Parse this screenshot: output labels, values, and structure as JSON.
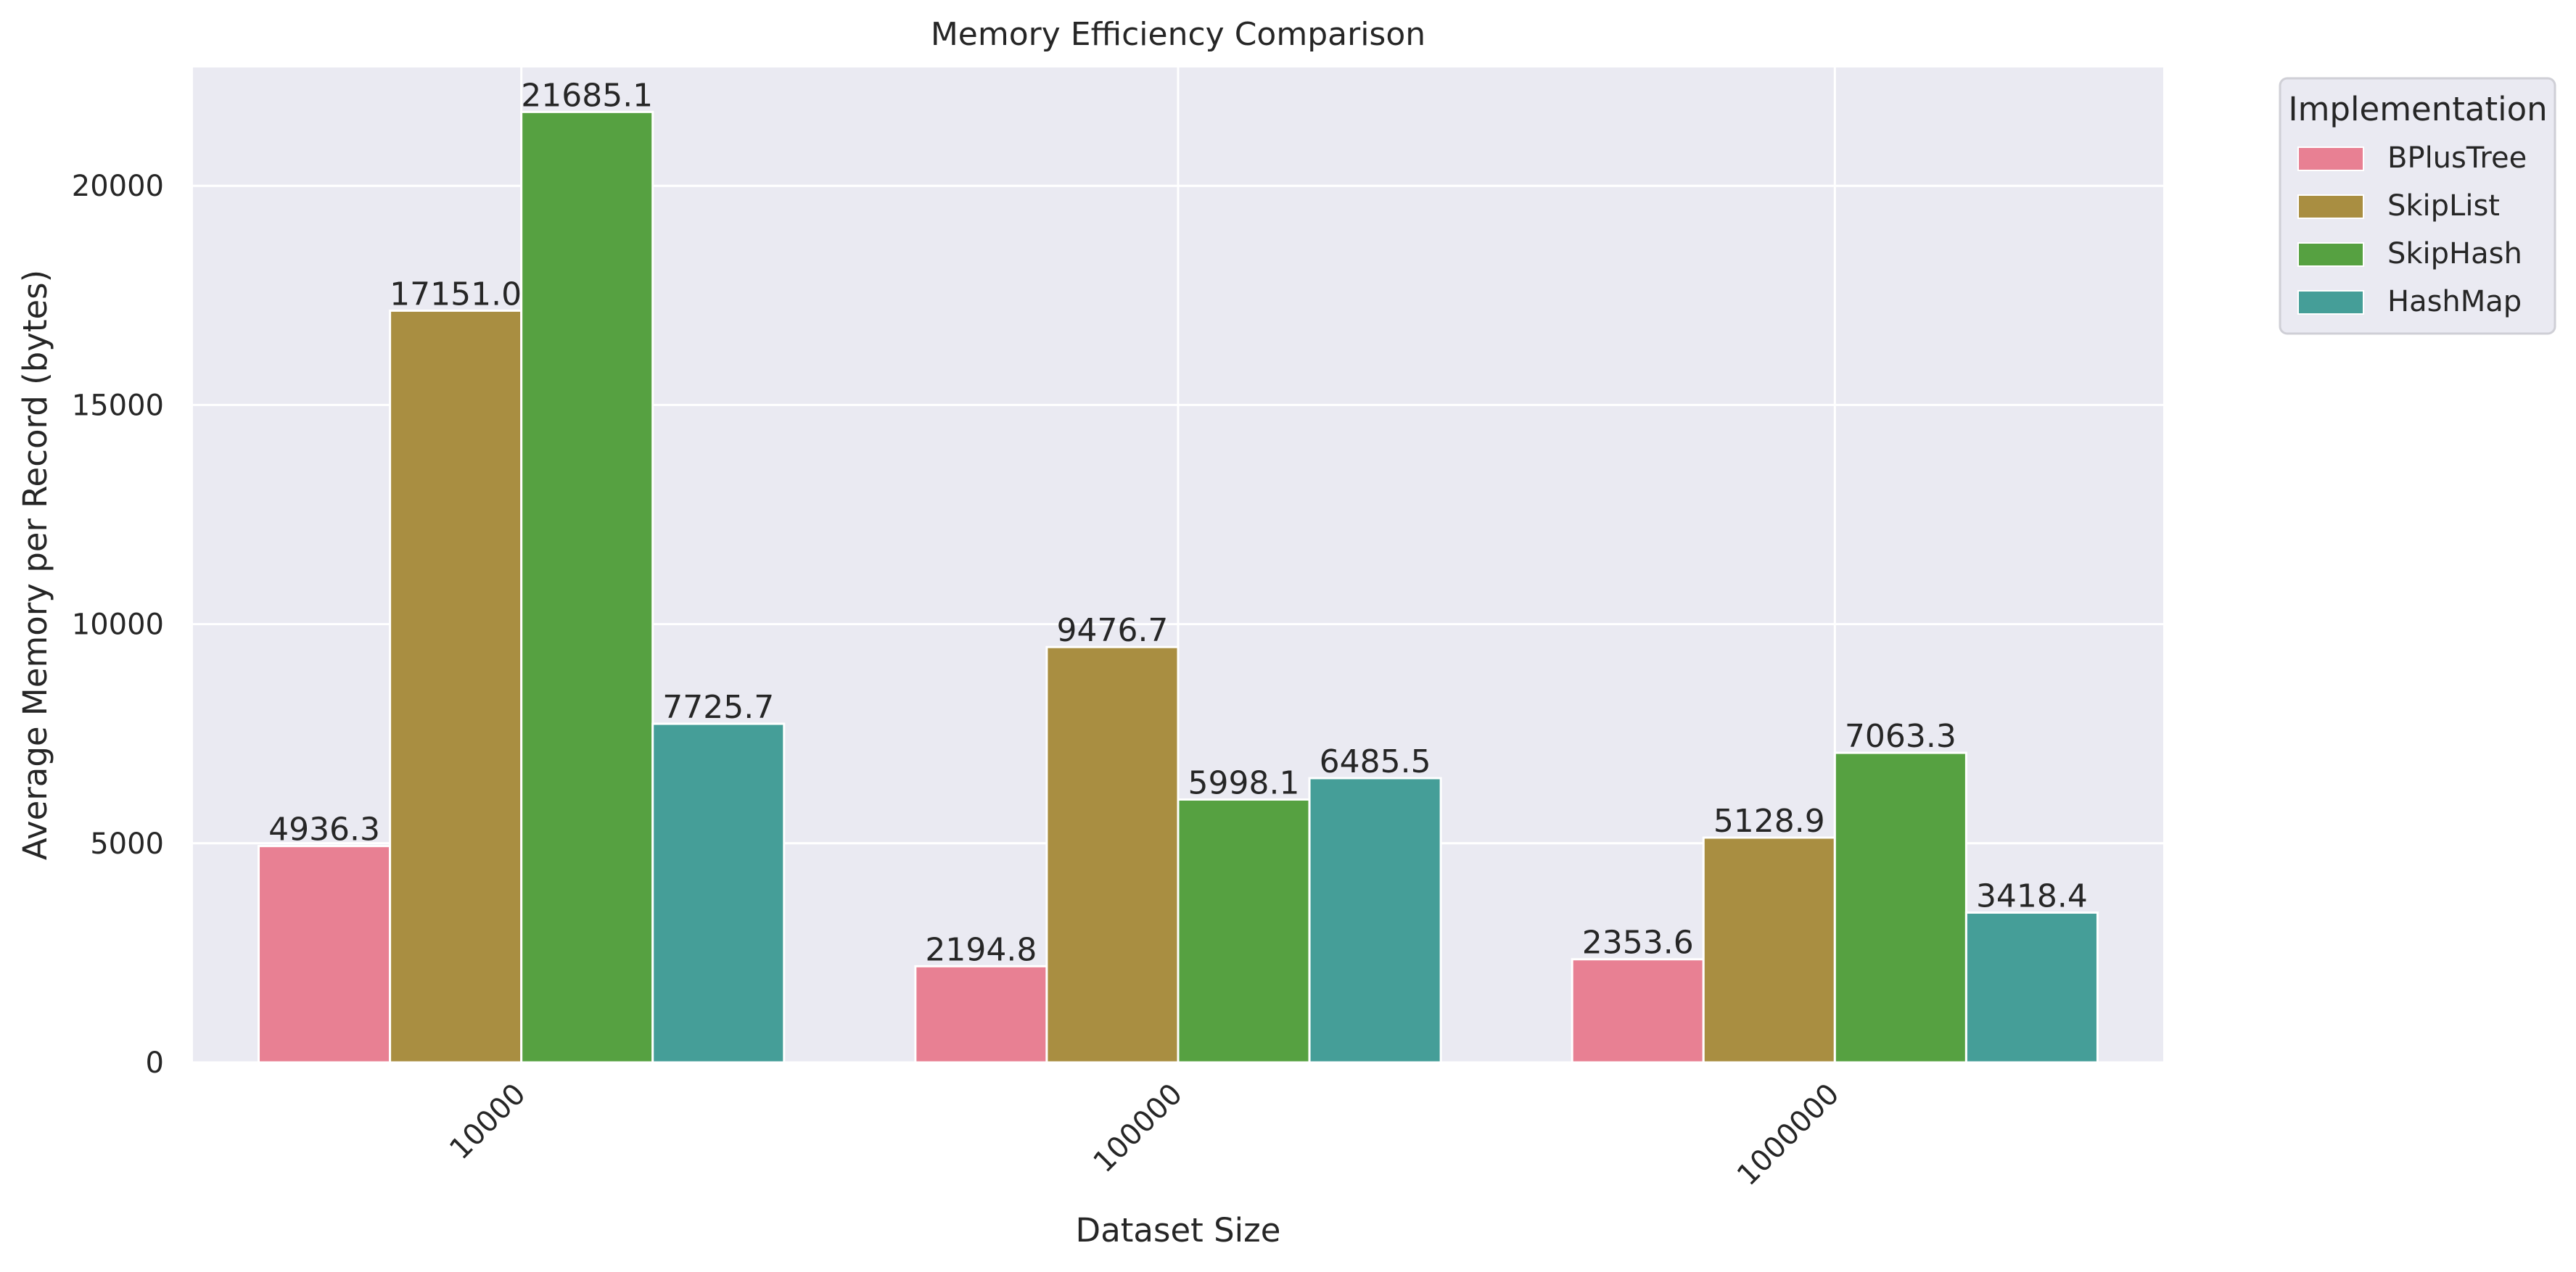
{
  "chart_data": {
    "type": "bar",
    "title": "Memory Efficiency Comparison",
    "xlabel": "Dataset Size",
    "ylabel": "Average Memory per Record (bytes)",
    "categories": [
      "10000",
      "100000",
      "1000000"
    ],
    "ylim": [
      0,
      22700
    ],
    "yticks": [
      0,
      5000,
      10000,
      15000,
      20000
    ],
    "yticks_labels": [
      "0",
      "5000",
      "10000",
      "15000",
      "20000"
    ],
    "grid": true,
    "legend": {
      "title": "Implementation",
      "placement": "outside-upper-right"
    },
    "series": [
      {
        "name": "BPlusTree",
        "color": "#e88093",
        "values": [
          4936.3,
          2194.8,
          2353.6
        ],
        "labels": [
          "4936.3",
          "2194.8",
          "2353.6"
        ]
      },
      {
        "name": "SkipList",
        "color": "#a98e41",
        "values": [
          17151.0,
          9476.7,
          5128.9
        ],
        "labels": [
          "17151.0",
          "9476.7",
          "5128.9"
        ]
      },
      {
        "name": "SkipHash",
        "color": "#56a141",
        "values": [
          21685.1,
          5998.1,
          7063.3
        ],
        "labels": [
          "21685.1",
          "5998.1",
          "7063.3"
        ]
      },
      {
        "name": "HashMap",
        "color": "#459e98",
        "values": [
          7725.7,
          6485.5,
          3418.4
        ],
        "labels": [
          "7725.7",
          "6485.5",
          "3418.4"
        ]
      }
    ],
    "plot_background": "#eaeaf2"
  }
}
